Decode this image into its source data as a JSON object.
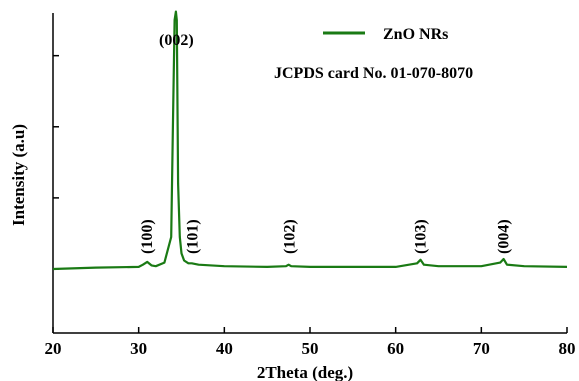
{
  "chart_data": {
    "type": "line",
    "xlabel": "2Theta (deg.)",
    "ylabel": "Intensity (a.u)",
    "xlim": [
      20,
      80
    ],
    "ylim": [
      -0.9,
      3.6
    ],
    "xticks": [
      20,
      30,
      40,
      50,
      60,
      70,
      80
    ],
    "yticks": [
      0,
      1,
      2,
      3
    ],
    "show_ytick_labels": false,
    "grid": false,
    "legend": {
      "position": "top-right",
      "entries": [
        "ZnO NRs"
      ]
    },
    "annotation": "JCPDS card No. 01-070-8070",
    "series": [
      {
        "name": "ZnO NRs",
        "color": "#1a7a14",
        "x": [
          20,
          25,
          30,
          30.5,
          31.0,
          31.5,
          32,
          33.0,
          33.8,
          34.0,
          34.2,
          34.35,
          34.45,
          34.6,
          34.8,
          35.0,
          35.3,
          35.8,
          36.2,
          37,
          40,
          45,
          47.2,
          47.5,
          47.8,
          50,
          55,
          60,
          62.5,
          62.9,
          63.3,
          65,
          68,
          70,
          72.2,
          72.6,
          73.0,
          75,
          80
        ],
        "y": [
          0.0,
          0.02,
          0.03,
          0.06,
          0.1,
          0.05,
          0.04,
          0.09,
          0.45,
          2.0,
          3.5,
          3.62,
          3.5,
          1.2,
          0.45,
          0.22,
          0.12,
          0.08,
          0.08,
          0.06,
          0.04,
          0.03,
          0.04,
          0.06,
          0.04,
          0.03,
          0.03,
          0.03,
          0.08,
          0.13,
          0.06,
          0.04,
          0.04,
          0.04,
          0.09,
          0.14,
          0.06,
          0.04,
          0.03
        ]
      }
    ],
    "peaks": [
      {
        "label": "(100)",
        "x": 31.0,
        "rotated": true
      },
      {
        "label": "(002)",
        "x": 34.4,
        "rotated": false
      },
      {
        "label": "(101)",
        "x": 36.3,
        "rotated": true
      },
      {
        "label": "(102)",
        "x": 47.6,
        "rotated": true
      },
      {
        "label": "(103)",
        "x": 62.9,
        "rotated": true
      },
      {
        "label": "(004)",
        "x": 72.6,
        "rotated": true
      }
    ]
  }
}
